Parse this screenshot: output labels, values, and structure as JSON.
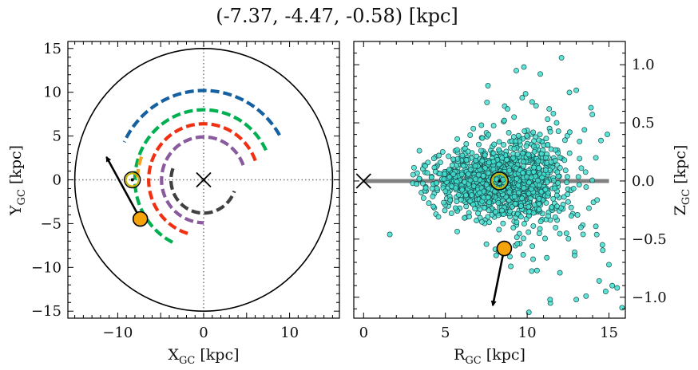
{
  "figure": {
    "title": "(-7.37, -4.47, -0.58) [kpc]"
  },
  "chart_data": [
    {
      "type": "line",
      "panel": "left",
      "xlabel_main": "X",
      "xlabel_sub": "GC",
      "xlabel_unit": " [kpc]",
      "ylabel_main": "Y",
      "ylabel_sub": "GC",
      "ylabel_unit": " [kpc]",
      "xlim": [
        -15.8,
        15.8
      ],
      "ylim": [
        -15.8,
        15.8
      ],
      "x_ticks": [
        -10,
        -5,
        0,
        5,
        10
      ],
      "x_ticklabels": [
        "−10",
        "",
        "0",
        "",
        "10"
      ],
      "y_ticks": [
        -15,
        -10,
        -5,
        0,
        5,
        10,
        15
      ],
      "y_ticklabels": [
        "−15",
        "−10",
        "−5",
        "0",
        "5",
        "10",
        "15"
      ],
      "boundary_circle_radius": 15,
      "galactic_center": [
        0,
        0
      ],
      "sun": [
        -8.3,
        0
      ],
      "star": [
        -7.37,
        -4.47
      ],
      "velocity_arrow_end": [
        -11.3,
        2.6
      ],
      "spiral_arms": [
        {
          "color": "#1460a0",
          "radius": 10.2,
          "theta_start_deg": 30,
          "theta_end_deg": 155
        },
        {
          "color": "#00b050",
          "radius": 8.0,
          "theta_start_deg": 25,
          "theta_end_deg": 245
        },
        {
          "color": "#f4a020",
          "radius": 7.7,
          "theta_start_deg": 160,
          "theta_end_deg": 178
        },
        {
          "color": "#f03010",
          "radius": 6.4,
          "theta_start_deg": 20,
          "theta_end_deg": 255
        },
        {
          "color": "#8a5a9e",
          "radius": 4.9,
          "theta_start_deg": 20,
          "theta_end_deg": 270
        },
        {
          "color": "#404040",
          "radius": 3.8,
          "theta_start_deg": 160,
          "theta_end_deg": 340
        }
      ],
      "colors": {
        "axis": "#000000",
        "circle": "#000000",
        "star": "#f5a30a",
        "sun": "#c8b400",
        "dotted": "#777777"
      }
    },
    {
      "type": "scatter",
      "panel": "right",
      "xlabel_main": "R",
      "xlabel_sub": "GC",
      "xlabel_unit": " [kpc]",
      "ylabel_main": "Z",
      "ylabel_sub": "GC",
      "ylabel_unit": " [kpc]",
      "xlim": [
        -0.6,
        16
      ],
      "ylim": [
        -1.18,
        1.2
      ],
      "x_ticks": [
        0,
        5,
        10,
        15
      ],
      "x_ticklabels": [
        "0",
        "5",
        "10",
        "15"
      ],
      "y_ticks": [
        -1.0,
        -0.5,
        0.0,
        0.5,
        1.0
      ],
      "y_ticklabels": [
        "−1.0",
        "−0.5",
        "0.0",
        "0.5",
        "1.0"
      ],
      "galactic_center": [
        0,
        0
      ],
      "disk_line": {
        "x": [
          0,
          15
        ],
        "y": 0
      },
      "sun": [
        8.3,
        0
      ],
      "star": [
        8.6,
        -0.58
      ],
      "velocity_arrow_end": [
        7.9,
        -1.07
      ],
      "scatter_cloud": {
        "n_points": 1500,
        "center_r": 8.5,
        "spread_r": 2.0,
        "spread_z_core": 0.12
      },
      "sparse_points": [
        [
          1.6,
          -0.46
        ],
        [
          3.4,
          0.02
        ],
        [
          3.8,
          -0.06
        ],
        [
          6.2,
          0.28
        ],
        [
          7.2,
          0.48
        ],
        [
          7.6,
          0.82
        ],
        [
          8.1,
          -0.64
        ],
        [
          8.8,
          0.62
        ],
        [
          9.4,
          -0.54
        ],
        [
          9.8,
          0.98
        ],
        [
          10.1,
          -1.13
        ],
        [
          10.3,
          0.68
        ],
        [
          10.8,
          0.92
        ],
        [
          11.2,
          -0.66
        ],
        [
          11.6,
          0.58
        ],
        [
          12.0,
          -0.79
        ],
        [
          12.1,
          1.06
        ],
        [
          12.6,
          0.42
        ],
        [
          12.9,
          -0.64
        ],
        [
          13.2,
          0.34
        ],
        [
          13.6,
          -0.99
        ],
        [
          13.9,
          0.63
        ],
        [
          14.2,
          -0.39
        ],
        [
          14.6,
          -0.55
        ],
        [
          14.9,
          0.4
        ],
        [
          15.2,
          -0.9
        ],
        [
          15.5,
          -0.92
        ],
        [
          15.8,
          -1.09
        ],
        [
          15.0,
          -0.72
        ],
        [
          14.4,
          -0.86
        ],
        [
          13.0,
          0.78
        ],
        [
          11.8,
          0.5
        ],
        [
          12.4,
          -0.45
        ],
        [
          6.9,
          -0.34
        ],
        [
          9.2,
          0.55
        ],
        [
          10.6,
          -0.77
        ],
        [
          12.7,
          -0.3
        ],
        [
          13.5,
          0.44
        ],
        [
          8.6,
          0.52
        ],
        [
          9.9,
          0.75
        ],
        [
          11.4,
          -1.02
        ],
        [
          13.0,
          -1.02
        ],
        [
          14.8,
          -0.95
        ]
      ],
      "colors": {
        "point_fill": "#40e0d0",
        "point_edge": "#1a4a4a",
        "disk": "#808080",
        "star": "#f5a30a",
        "sun": "#c8b400"
      }
    }
  ]
}
